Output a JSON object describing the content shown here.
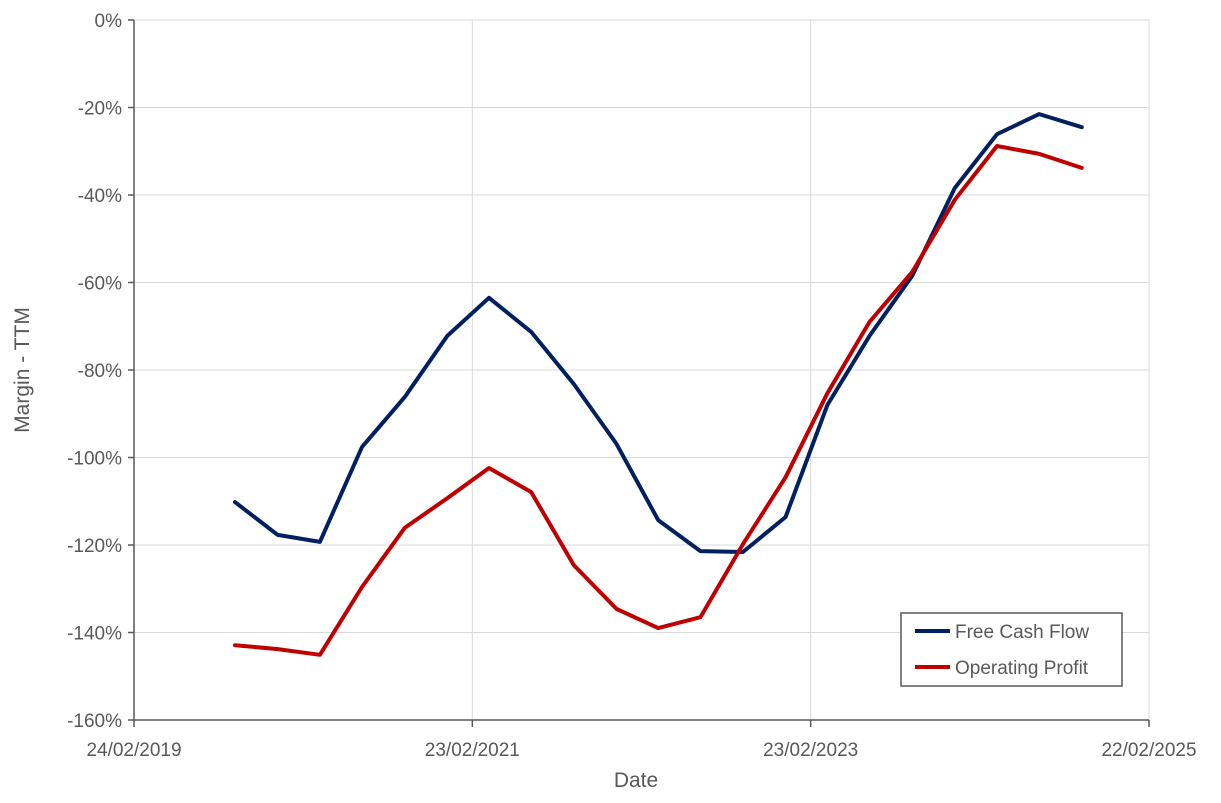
{
  "chart_data": {
    "type": "line",
    "title": "",
    "xlabel": "Date",
    "ylabel": "Margin - TTM",
    "ylim": [
      -160,
      0
    ],
    "yticks": [
      0,
      -20,
      -40,
      -60,
      -80,
      -100,
      -120,
      -140,
      -160
    ],
    "ytick_labels": [
      "0%",
      "-20%",
      "-40%",
      "-60%",
      "-80%",
      "-100%",
      "-120%",
      "-140%",
      "-160%"
    ],
    "xlim": [
      "2019-02-24",
      "2025-02-22"
    ],
    "xticks": [
      "2019-02-24",
      "2021-02-23",
      "2023-02-23",
      "2025-02-22"
    ],
    "xtick_labels": [
      "24/02/2019",
      "23/02/2021",
      "23/02/2023",
      "22/02/2025"
    ],
    "grid": true,
    "legend_position": "bottom-right",
    "x": [
      "2019-09-30",
      "2019-12-31",
      "2020-03-31",
      "2020-06-30",
      "2020-09-30",
      "2020-12-31",
      "2021-03-31",
      "2021-06-30",
      "2021-09-30",
      "2021-12-31",
      "2022-03-31",
      "2022-06-30",
      "2022-09-30",
      "2022-12-31",
      "2023-03-31",
      "2023-06-30",
      "2023-09-30",
      "2023-12-31",
      "2024-03-31",
      "2024-06-30",
      "2024-09-30"
    ],
    "series": [
      {
        "name": "Free Cash Flow",
        "color": "#002060",
        "values": [
          -110.2,
          -117.7,
          -119.3,
          -97.6,
          -86.2,
          -72.2,
          -63.5,
          -71.3,
          -83.2,
          -96.9,
          -114.3,
          -121.4,
          -121.6,
          -113.6,
          -88.0,
          -72.2,
          -58.5,
          -38.4,
          -26.1,
          -21.5,
          -24.5
        ]
      },
      {
        "name": "Operating Profit",
        "color": "#C00000",
        "values": [
          -142.9,
          -143.8,
          -145.1,
          -129.6,
          -116.1,
          -109.3,
          -102.4,
          -107.9,
          -124.6,
          -134.6,
          -139.0,
          -136.5,
          -119.8,
          -104.5,
          -85.3,
          -69.0,
          -57.6,
          -41.1,
          -28.8,
          -30.6,
          -33.8
        ]
      }
    ]
  }
}
